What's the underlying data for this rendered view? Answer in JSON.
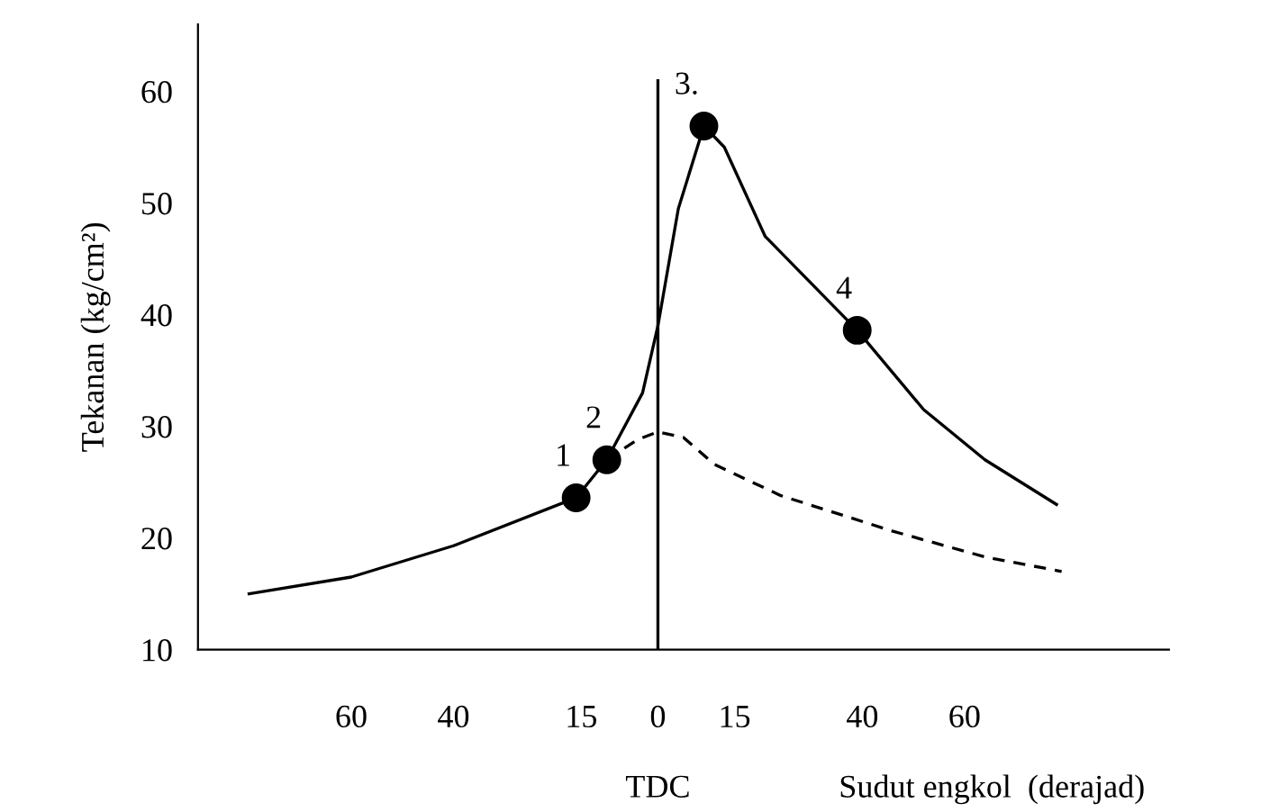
{
  "chart_data": {
    "type": "line",
    "xlabel": "Sudut engkol  (derajad)",
    "ylabel": "Tekanan (kg/cm²)",
    "xlim": [
      -90,
      100
    ],
    "ylim": [
      10,
      66
    ],
    "xticks": [
      {
        "value": -60,
        "label": "60"
      },
      {
        "value": -40,
        "label": "40"
      },
      {
        "value": -15,
        "label": "15"
      },
      0,
      15,
      40,
      60
    ],
    "yticks": [
      10,
      20,
      30,
      40,
      50,
      60
    ],
    "grid": false,
    "legend": false,
    "ref_lines": [
      {
        "axis": "x",
        "value": 0,
        "label": "TDC",
        "color": "#000000",
        "line_style": "solid"
      }
    ],
    "series": [
      {
        "type": "line",
        "color": "#000000",
        "line_style": "solid",
        "marker": "none",
        "x": [
          -80,
          -60,
          -40,
          -16,
          -10,
          -3,
          0,
          4,
          9,
          13,
          21,
          39,
          52,
          64,
          78
        ],
        "values": [
          15.0,
          16.5,
          19.3,
          23.6,
          27.0,
          33.0,
          39.0,
          49.5,
          56.9,
          55.0,
          47.0,
          38.6,
          31.5,
          27.0,
          23.0
        ]
      },
      {
        "type": "line",
        "color": "#000000",
        "line_style": "dashed",
        "marker": "none",
        "x": [
          -10,
          -4,
          0,
          5,
          11,
          24,
          46,
          64,
          79
        ],
        "values": [
          27.0,
          28.8,
          29.5,
          29.0,
          26.6,
          23.8,
          20.6,
          18.3,
          17.0
        ]
      },
      {
        "type": "scatter",
        "color": "#000000",
        "marker": "circle",
        "x": [
          -16,
          -10,
          9,
          39
        ],
        "values": [
          23.6,
          27.0,
          56.9,
          38.6
        ]
      }
    ],
    "annotations": [
      {
        "text": "1",
        "x": -16,
        "y": 23.6
      },
      {
        "text": "2",
        "x": -10,
        "y": 27.0
      },
      {
        "text": "3.",
        "x": 9,
        "y": 56.9
      },
      {
        "text": "4",
        "x": 39,
        "y": 38.6
      }
    ]
  }
}
